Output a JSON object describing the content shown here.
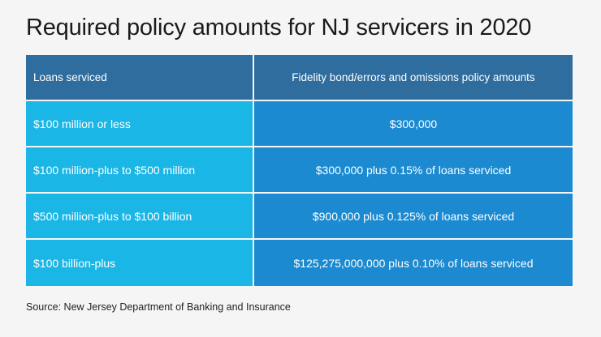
{
  "title": "Required policy amounts for NJ servicers in 2020",
  "table": {
    "headers": [
      "Loans serviced",
      "Fidelity bond/errors and omissions policy amounts"
    ],
    "rows": [
      [
        "$100 million or less",
        "$300,000"
      ],
      [
        "$100 million-plus to $500 million",
        "$300,000 plus 0.15% of loans serviced"
      ],
      [
        "$500 million-plus to $100 billion",
        "$900,000 plus 0.125% of loans serviced"
      ],
      [
        "$100 billion-plus",
        "$125,275,000,000 plus 0.10% of loans serviced"
      ]
    ]
  },
  "source": "Source: New Jersey Department of Banking and Insurance",
  "colors": {
    "header_bg": "#2f6d9e",
    "left_col_bg": "#1ab6e6",
    "right_col_bg": "#1b8ad0",
    "page_bg": "#f5f5f5"
  }
}
